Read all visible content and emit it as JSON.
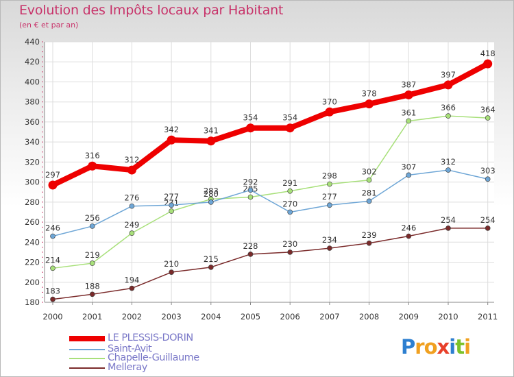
{
  "title": "Evolution des Impôts locaux par Habitant",
  "subtitle": "(en € et par an)",
  "logo": {
    "text": "Proxiti",
    "letters": [
      "P",
      "r",
      "o",
      "x",
      "i",
      "t",
      "i"
    ],
    "colors": [
      "#2d7fd0",
      "#f0a020",
      "#f0a020",
      "#e8402a",
      "#2d7fd0",
      "#7cc22a",
      "#f0a020"
    ]
  },
  "chart_data": {
    "type": "line",
    "x": [
      "2000",
      "2001",
      "2002",
      "2003",
      "2004",
      "2005",
      "2006",
      "2007",
      "2008",
      "2009",
      "2010",
      "2011"
    ],
    "ylim": [
      180,
      440
    ],
    "yticks": [
      180,
      200,
      220,
      240,
      260,
      280,
      300,
      320,
      340,
      360,
      380,
      400,
      420,
      440
    ],
    "grid": true,
    "legend_position": "bottom-left",
    "series": [
      {
        "name": "LE PLESSIS-DORIN",
        "color": "#ee0000",
        "values": [
          297,
          316,
          312,
          342,
          341,
          354,
          354,
          370,
          378,
          387,
          397,
          418
        ]
      },
      {
        "name": "Saint-Avit",
        "color": "#6ea6d6",
        "values": [
          246,
          256,
          276,
          277,
          280,
          292,
          270,
          277,
          281,
          307,
          312,
          303
        ]
      },
      {
        "name": "Chapelle-Guillaume",
        "color": "#a8e07a",
        "values": [
          214,
          219,
          249,
          271,
          283,
          285,
          291,
          298,
          302,
          361,
          366,
          364
        ]
      },
      {
        "name": "Melleray",
        "color": "#7a2a2a",
        "values": [
          183,
          188,
          194,
          210,
          215,
          228,
          230,
          234,
          239,
          246,
          254,
          254
        ]
      }
    ]
  }
}
